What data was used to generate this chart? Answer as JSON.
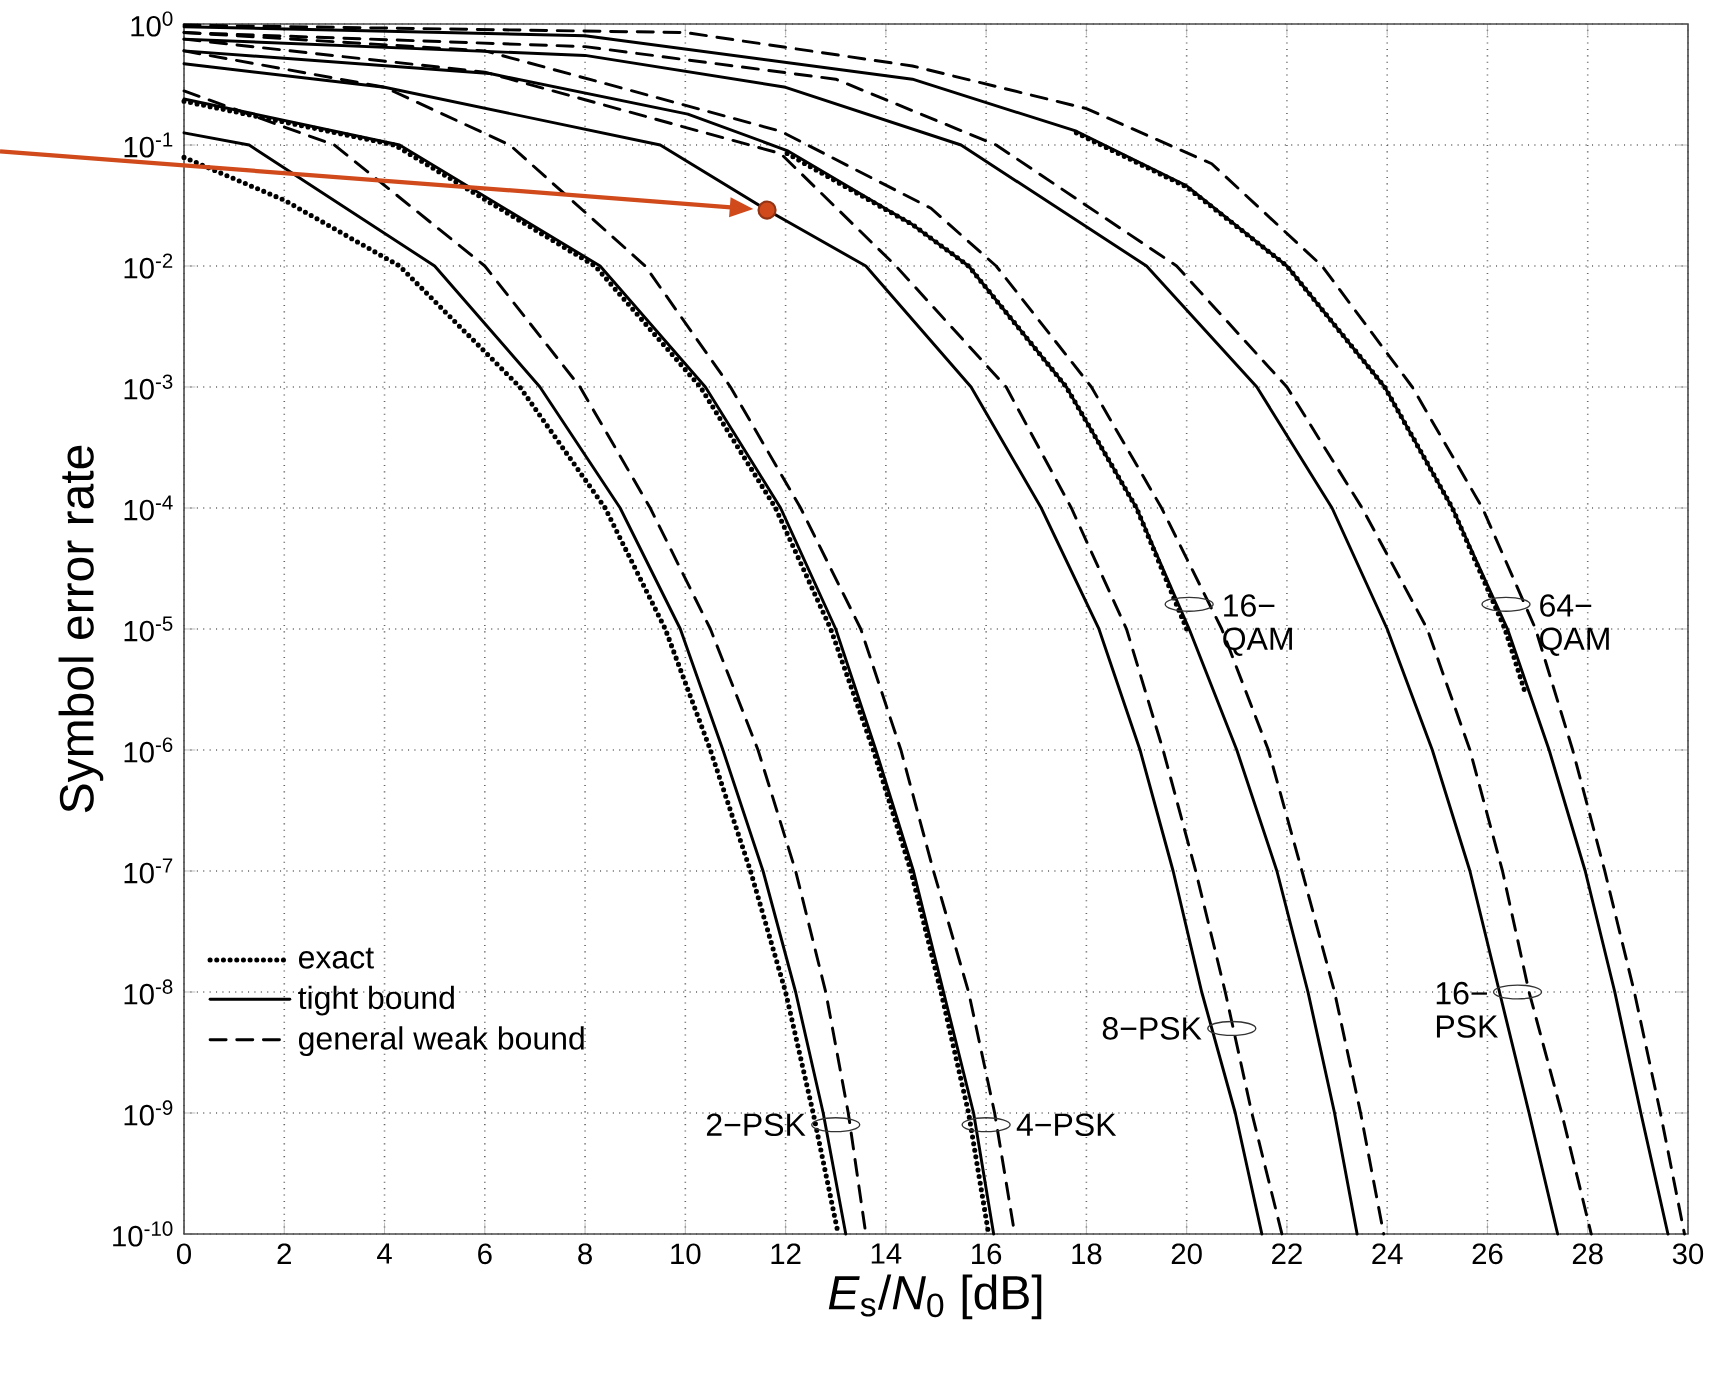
{
  "chart_data": {
    "type": "line",
    "xlabel": "*E*$_{s}$/*N*$_{0}$ [dB]",
    "ylabel": "Symbol error rate",
    "log": "y",
    "grid": true,
    "legend": "bottom left",
    "xlim": [
      0,
      30
    ],
    "ylim": [
      1e-10,
      1
    ],
    "xticks": [
      0,
      2,
      4,
      6,
      8,
      10,
      12,
      14,
      16,
      18,
      20,
      22,
      24,
      26,
      28,
      30
    ],
    "yticks": [
      {
        "value": 1,
        "label": "10$^{0}$"
      },
      {
        "value": 0.1,
        "label": "10$^{-1}$"
      },
      {
        "value": 0.01,
        "label": "10$^{-2}$"
      },
      {
        "value": 0.001,
        "label": "10$^{-3}$"
      },
      {
        "value": 0.0001,
        "label": "10$^{-4}$"
      },
      {
        "value": 1e-05,
        "label": "10$^{-5}$"
      },
      {
        "value": 1e-06,
        "label": "10$^{-6}$"
      },
      {
        "value": 1e-07,
        "label": "10$^{-7}$"
      },
      {
        "value": 1e-08,
        "label": "10$^{-8}$"
      },
      {
        "value": 1e-09,
        "label": "10$^{-9}$"
      },
      {
        "value": 1e-10,
        "label": "10$^{-10}$"
      }
    ],
    "series": [
      {
        "name": "exact",
        "color": "#000000",
        "line_style": "dotted",
        "x": [
          0,
          2,
          4.3,
          6.7,
          8.4,
          9.6,
          10.5,
          11.3,
          12.0,
          12.55,
          13.05
        ],
        "values": [
          0.079,
          0.035,
          0.01,
          0.001,
          0.0001,
          1e-05,
          1e-06,
          1e-07,
          1e-08,
          1e-09,
          1e-10
        ]
      },
      {
        "name": "tight bound",
        "color": "#000000",
        "line_style": "solid",
        "x": [
          0,
          1.3,
          5.0,
          7.1,
          8.7,
          9.9,
          10.75,
          11.55,
          12.2,
          12.75,
          13.2
        ],
        "values": [
          0.126,
          0.1,
          0.01,
          0.001,
          0.0001,
          1e-05,
          1e-06,
          1e-07,
          1e-08,
          1e-09,
          1e-10
        ]
      },
      {
        "name": "general weak bound",
        "color": "#000000",
        "line_style": "dashed",
        "x": [
          0,
          3.0,
          6.0,
          7.9,
          9.3,
          10.5,
          11.45,
          12.2,
          12.8,
          13.25,
          13.6
        ],
        "values": [
          0.28,
          0.1,
          0.01,
          0.001,
          0.0001,
          1e-05,
          1e-06,
          1e-07,
          1e-08,
          1e-09,
          1e-10
        ]
      },
      {
        "color": "#000000",
        "line_style": "dotted",
        "x": [
          0,
          4.2,
          8.2,
          10.3,
          11.8,
          12.9,
          13.75,
          14.5,
          15.1,
          15.65,
          16.05
        ],
        "values": [
          0.23,
          0.1,
          0.01,
          0.001,
          0.0001,
          1e-05,
          1e-06,
          1e-07,
          1e-08,
          1e-09,
          1e-10
        ]
      },
      {
        "color": "#000000",
        "line_style": "solid",
        "x": [
          0,
          4.3,
          8.3,
          10.4,
          11.9,
          13.0,
          13.8,
          14.55,
          15.15,
          15.75,
          16.15
        ],
        "values": [
          0.24,
          0.1,
          0.01,
          0.001,
          0.0001,
          1e-05,
          1e-06,
          1e-07,
          1e-08,
          1e-09,
          1e-10
        ]
      },
      {
        "color": "#000000",
        "line_style": "dashed",
        "x": [
          0,
          4,
          6.5,
          9.2,
          10.9,
          12.3,
          13.5,
          14.3,
          14.95,
          15.65,
          16.17,
          16.57
        ],
        "values": [
          0.6,
          0.3,
          0.1,
          0.01,
          0.001,
          0.0001,
          1e-05,
          1e-06,
          1e-07,
          1e-08,
          1e-09,
          1e-10
        ]
      },
      {
        "color": "#000000",
        "line_style": "solid",
        "x": [
          0,
          4,
          9.5,
          11.63,
          13.6,
          15.7,
          17.1,
          18.25,
          19.07,
          19.73,
          20.3,
          20.97,
          21.5
        ],
        "values": [
          0.47,
          0.3,
          0.1,
          0.029,
          0.01,
          0.001,
          0.0001,
          1e-05,
          1e-06,
          1e-07,
          1e-08,
          1e-09,
          1e-10
        ]
      },
      {
        "color": "#000000",
        "line_style": "dashed",
        "x": [
          0,
          6,
          11.9,
          14.2,
          16.4,
          17.7,
          18.8,
          19.53,
          20.18,
          20.77,
          21.3,
          21.9
        ],
        "values": [
          0.75,
          0.4,
          0.085,
          0.01,
          0.001,
          0.0001,
          1e-05,
          1e-06,
          1e-07,
          1e-08,
          1e-09,
          1e-10
        ]
      },
      {
        "color": "#000000",
        "line_style": "dotted",
        "x": [
          12.03,
          14.53,
          15.65,
          17.6,
          19.0,
          20.0
        ],
        "values": [
          0.085,
          0.022,
          0.01,
          0.001,
          0.0001,
          1e-05
        ]
      },
      {
        "color": "#000000",
        "line_style": "solid",
        "x": [
          0,
          6.1,
          10.05,
          12.03,
          14.53,
          15.65,
          17.6,
          19.0,
          20.05,
          21.0,
          21.8,
          22.42,
          22.95,
          23.4
        ],
        "values": [
          0.6,
          0.39,
          0.18,
          0.09,
          0.022,
          0.01,
          0.001,
          0.0001,
          1e-05,
          1e-06,
          1e-07,
          1e-08,
          1e-09,
          1e-10
        ]
      },
      {
        "color": "#000000",
        "line_style": "dashed",
        "x": [
          0,
          6,
          11.9,
          14.9,
          16.2,
          18.1,
          19.5,
          20.7,
          21.63,
          22.3,
          22.95,
          23.47,
          23.93
        ],
        "values": [
          0.85,
          0.6,
          0.13,
          0.03,
          0.01,
          0.001,
          0.0001,
          1e-05,
          1e-06,
          1e-07,
          1e-08,
          1e-09,
          1e-10
        ]
      },
      {
        "color": "#000000",
        "line_style": "solid",
        "x": [
          0,
          8,
          12,
          15.5,
          19.2,
          21.4,
          22.9,
          24.0,
          24.9,
          25.65,
          26.24,
          26.83,
          27.4
        ],
        "values": [
          0.75,
          0.55,
          0.3,
          0.1,
          0.01,
          0.001,
          0.0001,
          1e-05,
          1e-06,
          1e-07,
          1e-08,
          1e-09,
          1e-10
        ]
      },
      {
        "color": "#000000",
        "line_style": "dashed",
        "x": [
          0,
          8,
          13,
          16.2,
          19.8,
          22.0,
          23.5,
          24.8,
          25.65,
          26.3,
          26.83,
          27.48,
          28.07
        ],
        "values": [
          0.85,
          0.65,
          0.35,
          0.1,
          0.01,
          0.001,
          0.0001,
          1e-05,
          1e-06,
          1e-07,
          1e-08,
          1e-09,
          1e-10
        ]
      },
      {
        "color": "#000000",
        "line_style": "dotted",
        "x": [
          17.8,
          20,
          22.0,
          23.95,
          25.3,
          26.35,
          26.75
        ],
        "values": [
          0.126,
          0.045,
          0.01,
          0.001,
          0.0001,
          1e-05,
          3e-06
        ]
      },
      {
        "color": "#000000",
        "line_style": "solid",
        "x": [
          0,
          8,
          14.53,
          17.8,
          20,
          22.0,
          23.95,
          25.3,
          26.4,
          27.23,
          27.95,
          28.54,
          29.06,
          29.6
        ],
        "values": [
          0.95,
          0.8,
          0.35,
          0.13,
          0.046,
          0.01,
          0.001,
          0.0001,
          1e-05,
          1e-06,
          1e-07,
          1e-08,
          1e-09,
          1e-10
        ]
      },
      {
        "color": "#000000",
        "line_style": "dashed",
        "x": [
          0,
          10,
          14.53,
          18,
          20.5,
          22.7,
          24.5,
          25.9,
          26.96,
          27.7,
          28.34,
          28.93,
          29.45,
          29.93
        ],
        "values": [
          0.98,
          0.85,
          0.45,
          0.2,
          0.07,
          0.01,
          0.001,
          0.0001,
          1e-05,
          1e-06,
          1e-07,
          1e-08,
          1e-09,
          1e-10
        ]
      },
      {
        "type": "scatter",
        "color": "#d04a1c",
        "marker": "circle",
        "x": [
          11.63
        ],
        "values": [
          0.029
        ]
      }
    ],
    "annotations": [
      {
        "text": "2−PSK",
        "x": 13.0,
        "y": 8e-10
      },
      {
        "text": "4−PSK",
        "x": 16.0,
        "y": 8e-10
      },
      {
        "text": "8−PSK",
        "x": 20.9,
        "y": 5e-09
      },
      {
        "text": "16− QAM",
        "x": 20.05,
        "y": 1.6e-05
      },
      {
        "text": "16− PSK",
        "x": 26.6,
        "y": 1e-08
      },
      {
        "text": "64− QAM",
        "x": 26.37,
        "y": 1.6e-05
      }
    ]
  }
}
